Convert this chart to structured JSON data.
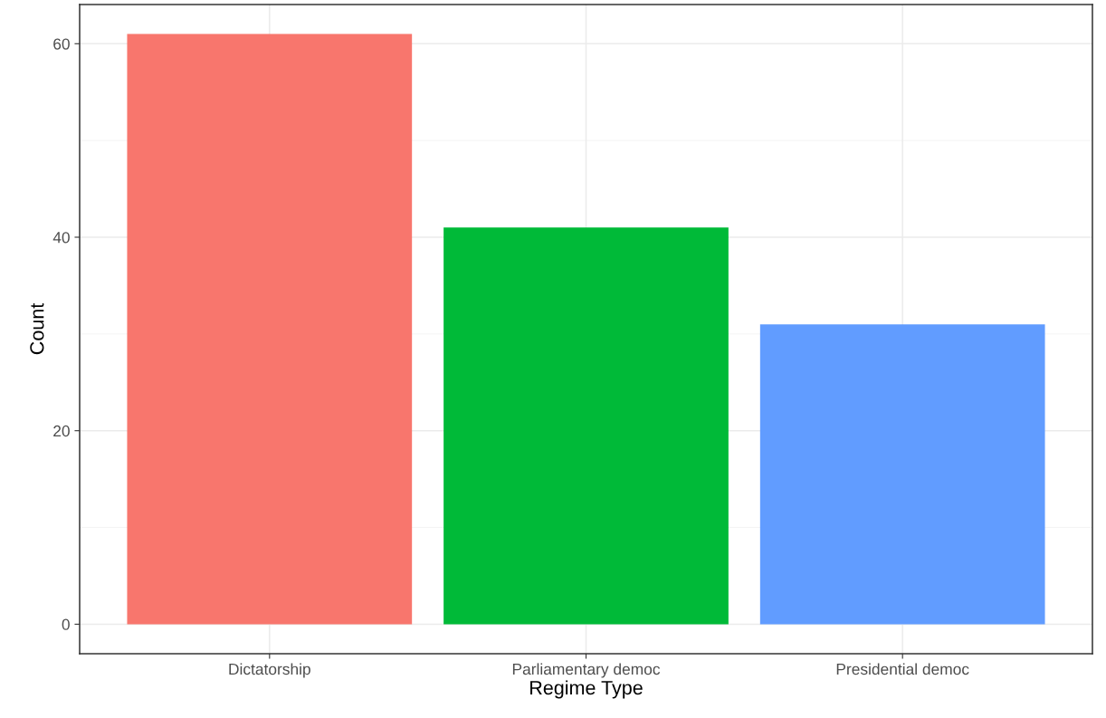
{
  "chart_data": {
    "type": "bar",
    "xlabel": "Regime Type",
    "ylabel": "Count",
    "categories": [
      "Dictatorship",
      "Parliamentary democ",
      "Presidential democ"
    ],
    "values": [
      61,
      41,
      31
    ],
    "colors": [
      "#f8766d",
      "#00ba38",
      "#619cff"
    ],
    "ylim": [
      -3.05,
      64.05
    ],
    "yticks": [
      0,
      20,
      40,
      60
    ],
    "grid": true
  }
}
